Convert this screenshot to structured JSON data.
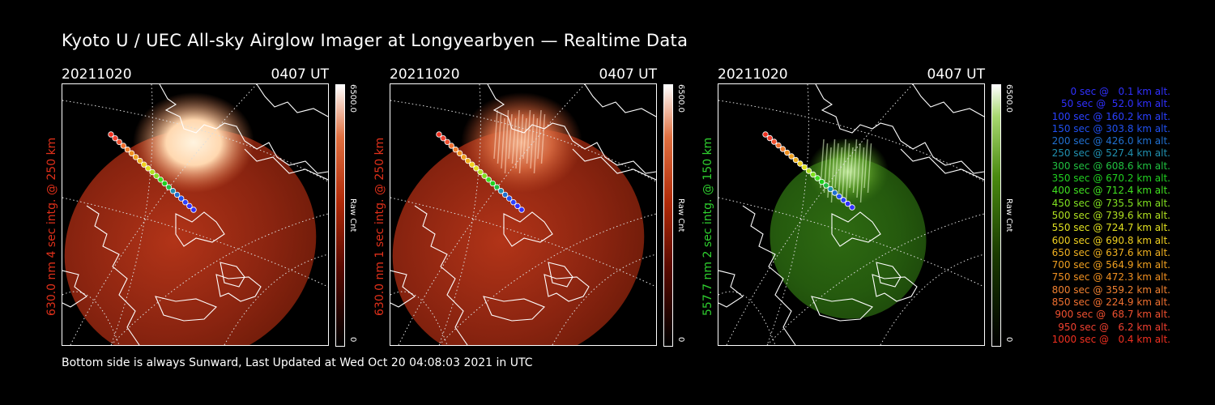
{
  "title": "Kyoto U / UEC All-sky Airglow Imager at Longyearbyen — Realtime Data",
  "footer": "Bottom side is always Sunward, Last Updated at Wed Oct 20 04:08:03 2021 in UTC",
  "panels": [
    {
      "date": "20211020",
      "time": "0407 UT",
      "label": "630.0 nm 4 sec intg. @ 250 km",
      "label_color": "#e0301a",
      "cbar_max": "6500.0",
      "cbar_unit": "Raw Cnt",
      "cbar_min": "0",
      "scheme": "red",
      "brightness": "saturated"
    },
    {
      "date": "20211020",
      "time": "0407 UT",
      "label": "630.0 nm 1 sec intg. @ 250 km",
      "label_color": "#e0301a",
      "cbar_max": "6500.0",
      "cbar_unit": "Raw Cnt",
      "cbar_min": "0",
      "scheme": "red",
      "brightness": "medium"
    },
    {
      "date": "20211020",
      "time": "0407 UT",
      "label": "557.7 nm 2 sec intg. @ 150 km",
      "label_color": "#2fd02f",
      "cbar_max": "6500.0",
      "cbar_unit": "Raw Cnt",
      "cbar_min": "0",
      "scheme": "green",
      "brightness": "low"
    }
  ],
  "legend": [
    {
      "text": "0 sec @   0.1 km alt.",
      "color": "#3030ff"
    },
    {
      "text": "50 sec @  52.0 km alt.",
      "color": "#3030ff"
    },
    {
      "text": "100 sec @ 160.2 km alt.",
      "color": "#2a40ff"
    },
    {
      "text": "150 sec @ 303.8 km alt.",
      "color": "#2050f0"
    },
    {
      "text": "200 sec @ 426.0 km alt.",
      "color": "#2070d0"
    },
    {
      "text": "250 sec @ 527.4 km alt.",
      "color": "#2090b0"
    },
    {
      "text": "300 sec @ 608.6 km alt.",
      "color": "#20c040"
    },
    {
      "text": "350 sec @ 670.2 km alt.",
      "color": "#20d020"
    },
    {
      "text": "400 sec @ 712.4 km alt.",
      "color": "#40e020"
    },
    {
      "text": "450 sec @ 735.5 km alt.",
      "color": "#80e020"
    },
    {
      "text": "500 sec @ 739.6 km alt.",
      "color": "#b0e020"
    },
    {
      "text": "550 sec @ 724.7 km alt.",
      "color": "#e0e020"
    },
    {
      "text": "600 sec @ 690.8 km alt.",
      "color": "#f0d020"
    },
    {
      "text": "650 sec @ 637.6 km alt.",
      "color": "#f0b020"
    },
    {
      "text": "700 sec @ 564.9 km alt.",
      "color": "#f0a020"
    },
    {
      "text": "750 sec @ 472.3 km alt.",
      "color": "#f09020"
    },
    {
      "text": "800 sec @ 359.2 km alt.",
      "color": "#f08030"
    },
    {
      "text": "850 sec @ 224.9 km alt.",
      "color": "#f07030"
    },
    {
      "text": "900 sec @  68.7 km alt.",
      "color": "#f05030"
    },
    {
      "text": "950 sec @   6.2 km alt.",
      "color": "#f04030"
    },
    {
      "text": "1000 sec @   0.4 km alt.",
      "color": "#f03020"
    }
  ]
}
